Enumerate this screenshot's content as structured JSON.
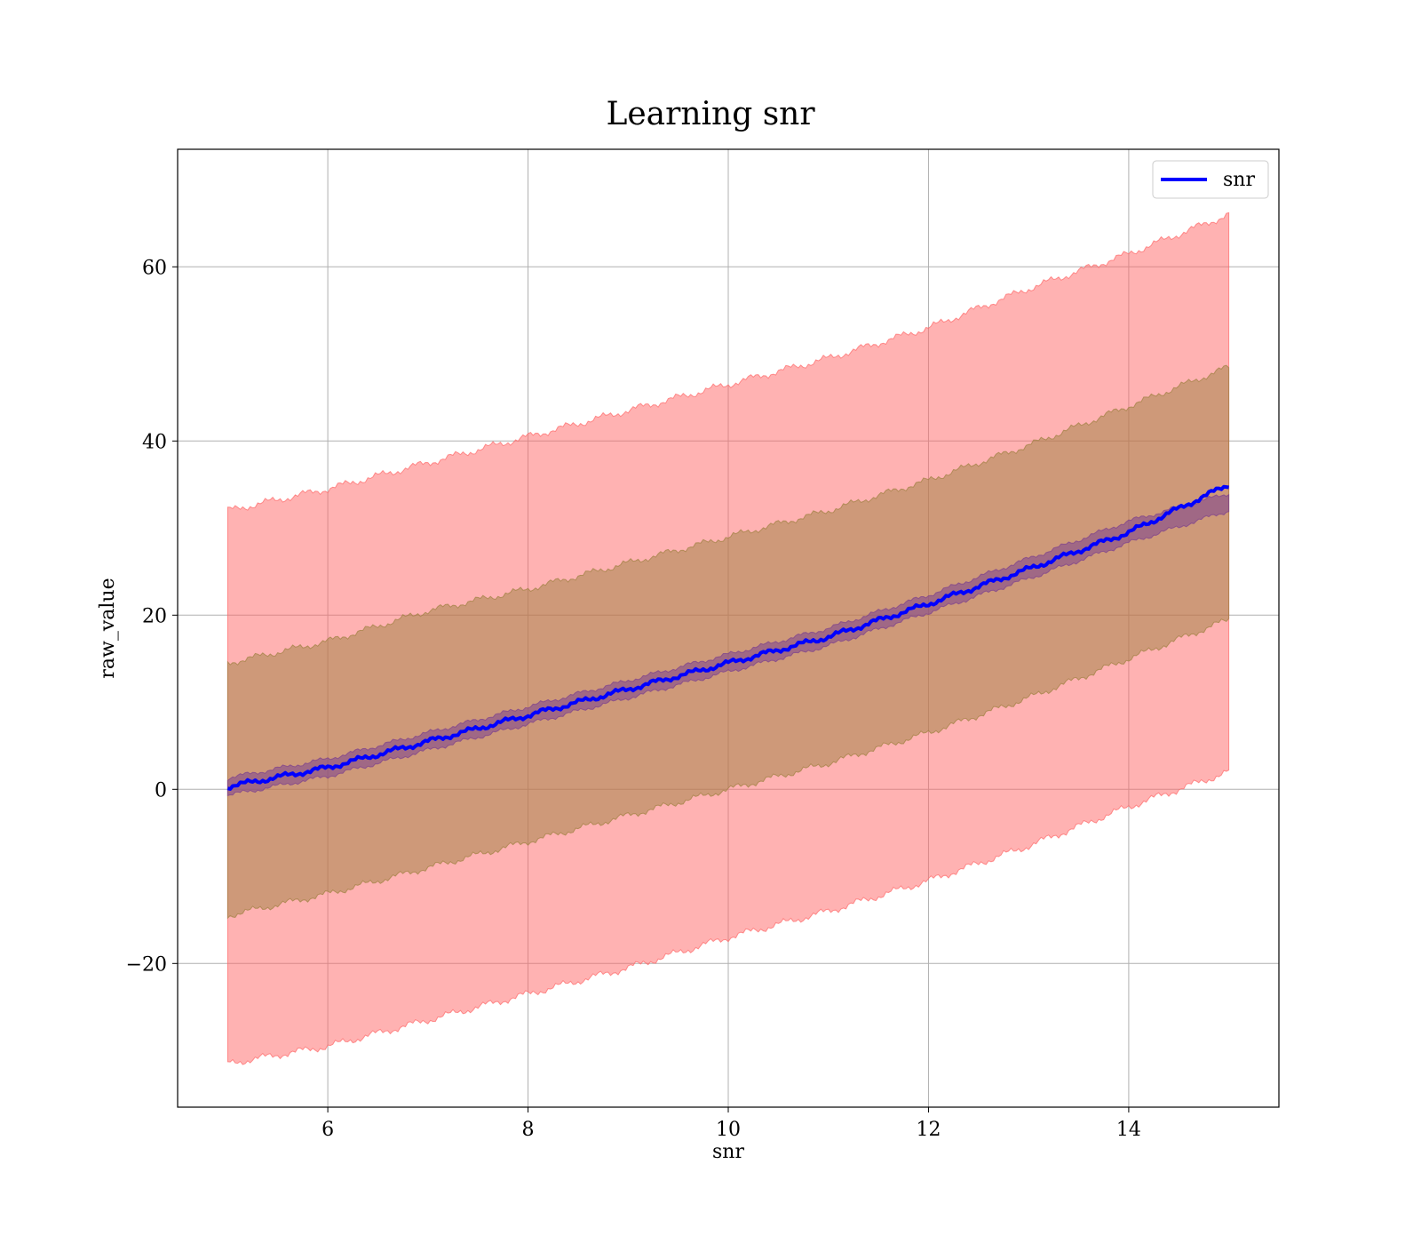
{
  "chart_data": {
    "type": "line",
    "title": "Learning snr",
    "xlabel": "snr",
    "ylabel": "raw_value",
    "xlim": [
      4.5,
      15.5
    ],
    "ylim": [
      -36.5,
      73.5
    ],
    "x_ticks": [
      6,
      8,
      10,
      12,
      14
    ],
    "y_ticks": [
      -20,
      0,
      20,
      40,
      60
    ],
    "x_tick_labels": [
      "6",
      "8",
      "10",
      "12",
      "14"
    ],
    "y_tick_labels": [
      "−20",
      "0",
      "20",
      "40",
      "60"
    ],
    "grid": true,
    "legend": {
      "placement": "top-right",
      "entries": [
        "snr"
      ]
    },
    "colors": {
      "line": "#0000ff",
      "outer_band": "#ff6666",
      "middle_band": "#9e8040",
      "inner_band": "#7a3f8f"
    },
    "x": [
      5,
      6,
      7,
      8,
      9,
      10,
      11,
      12,
      13,
      14,
      15
    ],
    "series": [
      {
        "name": "snr",
        "values": [
          0.3,
          2.5,
          5.5,
          8.5,
          11.5,
          14.5,
          17.5,
          21.3,
          25.3,
          29.5,
          35.0
        ]
      }
    ],
    "bands": [
      {
        "role": "outer",
        "upper": [
          32,
          34.5,
          37.5,
          40.5,
          43.5,
          46.5,
          49.5,
          53,
          57.5,
          61.5,
          66
        ],
        "lower": [
          -31.5,
          -29.5,
          -26.5,
          -23.5,
          -20.5,
          -17,
          -14,
          -10.5,
          -6.5,
          -2,
          2
        ]
      },
      {
        "role": "middle",
        "upper": [
          14.5,
          17,
          20.5,
          23,
          26,
          29,
          32,
          35.5,
          39.5,
          44,
          48.5
        ],
        "lower": [
          -14.5,
          -12,
          -9,
          -6,
          -3,
          0,
          3,
          6.5,
          10.5,
          15,
          19.5
        ]
      },
      {
        "role": "inner",
        "upper": [
          1.3,
          3.5,
          6.5,
          9.5,
          12.5,
          15.5,
          18.5,
          22.3,
          26.5,
          30.8,
          34.0
        ],
        "lower": [
          -0.7,
          1.5,
          4.5,
          7.5,
          10.5,
          13.5,
          16.5,
          20.3,
          24.2,
          28.3,
          32.0
        ]
      }
    ]
  }
}
